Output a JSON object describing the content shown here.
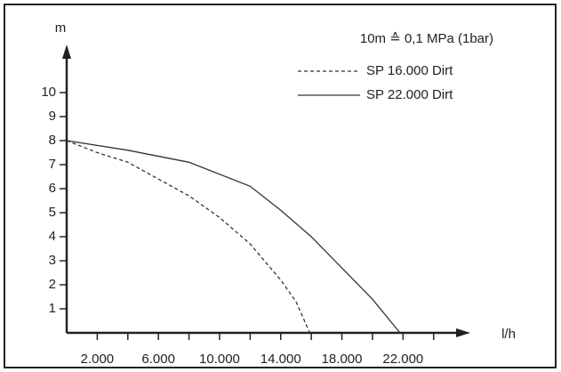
{
  "chart_data": {
    "type": "line",
    "annotation": "10m ≙ 0,1 MPa (1bar)",
    "y_label": "m",
    "x_label": "l/h",
    "xlim": [
      0,
      26400
    ],
    "ylim": [
      0,
      12
    ],
    "xticks": [
      {
        "value": 2000,
        "label": "2.000"
      },
      {
        "value": 6000,
        "label": "6.000"
      },
      {
        "value": 10000,
        "label": "10.000"
      },
      {
        "value": 14000,
        "label": "14.000"
      },
      {
        "value": 18000,
        "label": "18.000"
      },
      {
        "value": 22000,
        "label": "22.000"
      }
    ],
    "xminorticks": [
      4000,
      8000,
      12000,
      16000,
      20000,
      24000
    ],
    "yticks": [
      1,
      2,
      3,
      4,
      5,
      6,
      7,
      8,
      9,
      10
    ],
    "series": [
      {
        "name": "SP 16.000 Dirt",
        "color": "#333333",
        "dashed": true,
        "x": [
          0,
          2000,
          4000,
          6000,
          8000,
          10000,
          12000,
          14000,
          15000,
          15900
        ],
        "values": [
          8,
          7.5,
          7.1,
          6.4,
          5.7,
          4.8,
          3.7,
          2.2,
          1.3,
          0
        ]
      },
      {
        "name": "SP 22.000 Dirt",
        "color": "#333333",
        "dashed": false,
        "x": [
          0,
          4000,
          8000,
          12000,
          14000,
          16000,
          18000,
          20000,
          21800
        ],
        "values": [
          8,
          7.6,
          7.1,
          6.1,
          5.1,
          4.0,
          2.7,
          1.4,
          0
        ]
      }
    ]
  }
}
